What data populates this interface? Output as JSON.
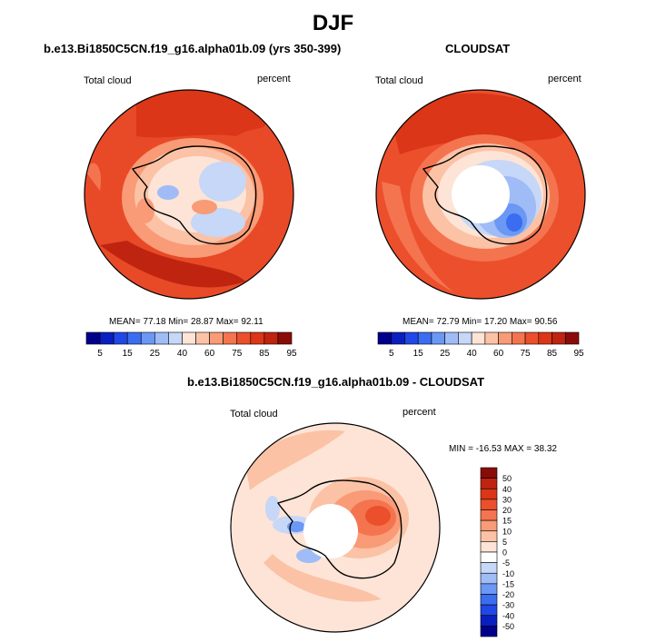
{
  "figure": {
    "title": "DJF"
  },
  "colors": {
    "palette": [
      "#00008b",
      "#0a1fbf",
      "#1f48e6",
      "#3a6df0",
      "#6b97f5",
      "#9fbcf7",
      "#c6d7f7",
      "#fde4d6",
      "#fbc2a6",
      "#f89b76",
      "#f4744f",
      "#ec4f2c",
      "#db3617",
      "#be2410",
      "#8a0c08"
    ],
    "coast": "#000000"
  },
  "chart_data": [
    {
      "type": "heatmap",
      "projection": "south-polar-stereographic",
      "title": "b.e13.Bi1850C5CN.f19_g16.alpha01b.09 (yrs 350-399)",
      "left_label": "Total cloud",
      "right_label": "percent",
      "stats_text": "MEAN= 77.18  Min= 28.87  Max= 92.11",
      "mean": 77.18,
      "min": 28.87,
      "max": 92.11,
      "colorbar_orientation": "horizontal",
      "colorbar_labels": [
        "5",
        "15",
        "25",
        "40",
        "60",
        "75",
        "85",
        "95"
      ],
      "levels": [
        5,
        10,
        15,
        20,
        25,
        30,
        40,
        50,
        60,
        70,
        75,
        80,
        85,
        90,
        95
      ]
    },
    {
      "type": "heatmap",
      "projection": "south-polar-stereographic",
      "title": "CLOUDSAT",
      "left_label": "Total cloud",
      "right_label": "percent",
      "stats_text": "MEAN= 72.79  Min= 17.20  Max= 90.56",
      "mean": 72.79,
      "min": 17.2,
      "max": 90.56,
      "colorbar_orientation": "horizontal",
      "colorbar_labels": [
        "5",
        "15",
        "25",
        "40",
        "60",
        "75",
        "85",
        "95"
      ],
      "levels": [
        5,
        10,
        15,
        20,
        25,
        30,
        40,
        50,
        60,
        70,
        75,
        80,
        85,
        90,
        95
      ]
    },
    {
      "type": "heatmap",
      "projection": "south-polar-stereographic",
      "title": "b.e13.Bi1850C5CN.f19_g16.alpha01b.09 - CLOUDSAT",
      "left_label": "Total cloud",
      "right_label": "percent",
      "stats_text": "MIN = -16.53 MAX =  38.32",
      "min": -16.53,
      "max": 38.32,
      "colorbar_orientation": "vertical",
      "colorbar_labels": [
        "50",
        "40",
        "30",
        "20",
        "15",
        "10",
        "5",
        "0",
        "-5",
        "-10",
        "-15",
        "-20",
        "-30",
        "-40",
        "-50"
      ]
    }
  ]
}
